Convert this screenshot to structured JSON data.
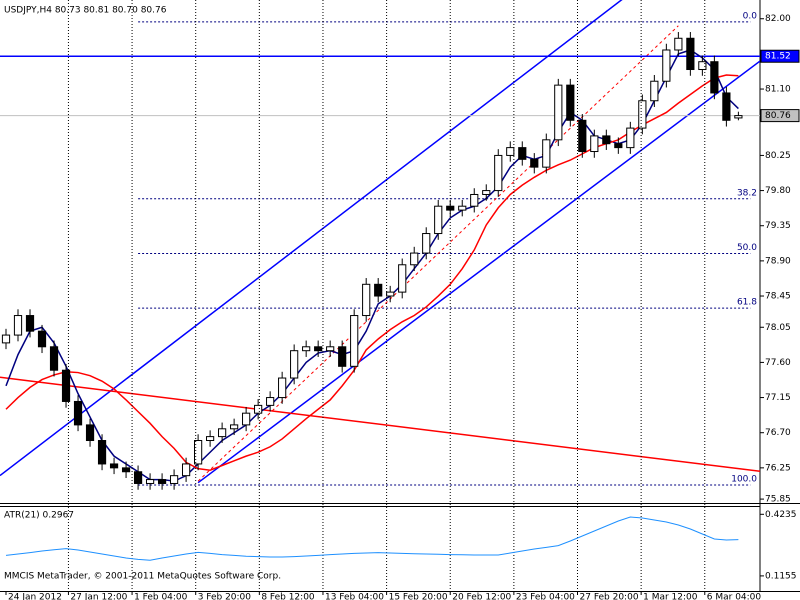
{
  "chart_data": {
    "type": "candlestick",
    "title": "USDJPY,H4  80.73 80.81 80.70 80.76",
    "indicator_label": "ATR(21) 0.2967",
    "footer": "MMCIS MetaTrader, © 2001-2011 MetaQuotes Software Corp.",
    "xlim": [
      -0.5,
      62.8
    ],
    "ylim": [
      75.8,
      82.24
    ],
    "grid": "vertical",
    "xticks": [
      {
        "value": 0,
        "label": "24 Jan 2012"
      },
      {
        "value": 5.2,
        "label": "27 Jan 12:00"
      },
      {
        "value": 10.5,
        "label": "1 Feb 04:00"
      },
      {
        "value": 15.8,
        "label": "3 Feb 20:00"
      },
      {
        "value": 21.1,
        "label": "8 Feb 12:00"
      },
      {
        "value": 26.4,
        "label": "13 Feb 04:00"
      },
      {
        "value": 31.7,
        "label": "15 Feb 20:00"
      },
      {
        "value": 37,
        "label": "20 Feb 12:00"
      },
      {
        "value": 42.3,
        "label": "23 Feb 04:00"
      },
      {
        "value": 47.6,
        "label": "27 Feb 20:00"
      },
      {
        "value": 52.9,
        "label": "1 Mar 12:00"
      },
      {
        "value": 58.2,
        "label": "6 Mar 04:00"
      }
    ],
    "yticks": [
      {
        "value": 82,
        "label": "82.00"
      },
      {
        "value": 81.1,
        "label": "81.10"
      },
      {
        "value": 80.25,
        "label": "80.25"
      },
      {
        "value": 79.8,
        "label": "79.80"
      },
      {
        "value": 79.35,
        "label": "79.35"
      },
      {
        "value": 78.9,
        "label": "78.90"
      },
      {
        "value": 78.45,
        "label": "78.45"
      },
      {
        "value": 78.05,
        "label": "78.05"
      },
      {
        "value": 77.6,
        "label": "77.60"
      },
      {
        "value": 77.15,
        "label": "77.15"
      },
      {
        "value": 76.7,
        "label": "76.70"
      },
      {
        "value": 76.25,
        "label": "76.25"
      },
      {
        "value": 75.85,
        "label": "75.85"
      }
    ],
    "price_markers": [
      {
        "value": 81.52,
        "label": "81.52",
        "color": "#0000ff"
      },
      {
        "value": 80.76,
        "label": "80.76",
        "color": "#c0c0c0"
      }
    ],
    "up_color": "#ffffff",
    "down_color": "#000000",
    "open": [
      77.85,
      77.95,
      78.2,
      78.0,
      77.8,
      77.5,
      77.1,
      76.8,
      76.6,
      76.3,
      76.25,
      76.2,
      76.05,
      76.1,
      76.05,
      76.15,
      76.3,
      76.6,
      76.65,
      76.75,
      76.8,
      76.95,
      77.05,
      77.15,
      77.4,
      77.75,
      77.8,
      77.75,
      77.8,
      77.55,
      78.2,
      78.6,
      78.45,
      78.5,
      78.85,
      79.0,
      79.25,
      79.6,
      79.55,
      79.6,
      79.75,
      79.8,
      80.25,
      80.35,
      80.2,
      80.1,
      80.45,
      81.15,
      80.7,
      80.3,
      80.5,
      80.4,
      80.35,
      80.6,
      80.95,
      81.2,
      81.6,
      81.75,
      81.35,
      81.45,
      81.05,
      80.73
    ],
    "high": [
      78.03,
      78.28,
      78.28,
      78.08,
      77.88,
      77.58,
      77.18,
      76.88,
      76.68,
      76.38,
      76.33,
      76.28,
      76.18,
      76.18,
      76.23,
      76.38,
      76.68,
      76.73,
      76.83,
      76.88,
      77.03,
      77.13,
      77.23,
      77.48,
      77.83,
      77.88,
      77.88,
      77.88,
      77.88,
      78.28,
      78.68,
      78.68,
      78.58,
      78.93,
      79.08,
      79.33,
      79.68,
      79.68,
      79.68,
      79.83,
      79.88,
      80.33,
      80.43,
      80.43,
      80.28,
      80.53,
      81.23,
      81.23,
      80.78,
      80.58,
      80.58,
      80.48,
      80.68,
      81.03,
      81.28,
      81.68,
      81.83,
      81.83,
      81.53,
      81.53,
      81.13,
      80.81
    ],
    "low": [
      77.77,
      77.87,
      77.92,
      77.72,
      77.42,
      77.02,
      76.72,
      76.52,
      76.22,
      76.17,
      76.12,
      75.97,
      75.97,
      75.97,
      75.97,
      76.07,
      76.22,
      76.52,
      76.57,
      76.67,
      76.72,
      76.87,
      76.97,
      77.07,
      77.32,
      77.67,
      77.67,
      77.67,
      77.47,
      77.47,
      78.12,
      78.37,
      78.37,
      78.42,
      78.77,
      78.92,
      79.17,
      79.47,
      79.47,
      79.52,
      79.67,
      79.72,
      80.17,
      80.12,
      80.02,
      80.02,
      80.37,
      80.62,
      80.22,
      80.22,
      80.32,
      80.27,
      80.27,
      80.52,
      80.87,
      81.12,
      81.52,
      81.27,
      81.27,
      80.97,
      80.62,
      80.7
    ],
    "close": [
      77.95,
      78.2,
      78.0,
      77.8,
      77.5,
      77.1,
      76.8,
      76.6,
      76.3,
      76.25,
      76.2,
      76.05,
      76.1,
      76.05,
      76.15,
      76.3,
      76.6,
      76.65,
      76.75,
      76.8,
      76.95,
      77.05,
      77.15,
      77.4,
      77.75,
      77.8,
      77.75,
      77.8,
      77.55,
      78.2,
      78.6,
      78.45,
      78.5,
      78.85,
      79.0,
      79.25,
      79.6,
      79.55,
      79.6,
      79.75,
      79.8,
      80.25,
      80.35,
      80.2,
      80.1,
      80.45,
      81.15,
      80.7,
      80.3,
      80.5,
      80.4,
      80.35,
      80.6,
      80.95,
      81.2,
      81.6,
      81.75,
      81.35,
      81.45,
      81.05,
      80.7,
      80.76
    ],
    "overlays": [
      {
        "color": "#000080",
        "values": [
          77.3,
          77.7,
          78.0,
          78.05,
          77.85,
          77.55,
          77.2,
          76.9,
          76.6,
          76.4,
          76.3,
          76.2,
          76.1,
          76.1,
          76.08,
          76.15,
          76.3,
          76.45,
          76.6,
          76.7,
          76.8,
          76.95,
          77.05,
          77.2,
          77.4,
          77.6,
          77.72,
          77.75,
          77.7,
          77.75,
          78.0,
          78.35,
          78.45,
          78.6,
          78.8,
          79.0,
          79.25,
          79.45,
          79.55,
          79.6,
          79.7,
          79.85,
          80.1,
          80.25,
          80.2,
          80.25,
          80.55,
          80.8,
          80.7,
          80.5,
          80.45,
          80.4,
          80.45,
          80.65,
          80.95,
          81.25,
          81.55,
          81.6,
          81.5,
          81.35,
          81.0,
          80.85
        ]
      },
      {
        "color": "#ff0000",
        "values": [
          77.0,
          77.15,
          77.28,
          77.38,
          77.44,
          77.48,
          77.47,
          77.43,
          77.36,
          77.26,
          77.12,
          76.97,
          76.82,
          76.65,
          76.5,
          76.32,
          76.24,
          76.22,
          76.28,
          76.34,
          76.4,
          76.45,
          76.52,
          76.62,
          76.75,
          76.88,
          77.0,
          77.12,
          77.3,
          77.5,
          77.76,
          77.9,
          78.02,
          78.12,
          78.2,
          78.31,
          78.45,
          78.6,
          78.8,
          79.04,
          79.36,
          79.58,
          79.75,
          79.87,
          79.97,
          80.06,
          80.13,
          80.19,
          80.27,
          80.35,
          80.4,
          80.45,
          80.55,
          80.64,
          80.72,
          80.8,
          80.92,
          81.03,
          81.14,
          81.24,
          81.28,
          81.27
        ]
      }
    ],
    "trendlines": [
      {
        "from": [
          0,
          76.21
        ],
        "to": [
          51,
          82.21
        ],
        "color": "#0000ff",
        "dashed": false,
        "ray": true
      },
      {
        "from": [
          16,
          76.06
        ],
        "to": [
          61,
          81.25
        ],
        "color": "#0000ff",
        "dashed": false,
        "ray": true
      },
      {
        "from": [
          0,
          77.4
        ],
        "to": [
          61,
          76.24
        ],
        "color": "#ff0000",
        "dashed": false,
        "ray": true
      },
      {
        "from": [
          16,
          76.08
        ],
        "to": [
          56,
          81.91
        ],
        "color": "#ff0000",
        "dashed": true,
        "ray": false
      },
      {
        "from": [
          -0.5,
          81.52
        ],
        "to": [
          61,
          81.52
        ],
        "color": "#0000ff",
        "dashed": false,
        "ray": true
      }
    ],
    "fibo": {
      "high": 81.96,
      "low": 76.03,
      "color": "#000080",
      "levels": [
        {
          "value": 0,
          "label": "0.0"
        },
        {
          "value": 38.2,
          "label": "38.2"
        },
        {
          "value": 50,
          "label": "50.0"
        },
        {
          "value": 61.8,
          "label": "61.8"
        },
        {
          "value": 100,
          "label": "100.0"
        }
      ]
    },
    "atr": {
      "color": "#1e90ff",
      "ylim": [
        0.04,
        0.46
      ],
      "yticks": [
        0.4235,
        0.1155
      ],
      "values": [
        0.218,
        0.225,
        0.232,
        0.24,
        0.246,
        0.252,
        0.245,
        0.235,
        0.225,
        0.215,
        0.205,
        0.198,
        0.194,
        0.205,
        0.215,
        0.225,
        0.233,
        0.228,
        0.222,
        0.218,
        0.214,
        0.212,
        0.21,
        0.21,
        0.212,
        0.215,
        0.218,
        0.222,
        0.225,
        0.228,
        0.23,
        0.232,
        0.23,
        0.228,
        0.226,
        0.225,
        0.224,
        0.222,
        0.221,
        0.22,
        0.22,
        0.22,
        0.23,
        0.24,
        0.25,
        0.258,
        0.267,
        0.29,
        0.315,
        0.34,
        0.365,
        0.39,
        0.41,
        0.405,
        0.395,
        0.385,
        0.37,
        0.35,
        0.325,
        0.3,
        0.295,
        0.2967
      ]
    }
  }
}
